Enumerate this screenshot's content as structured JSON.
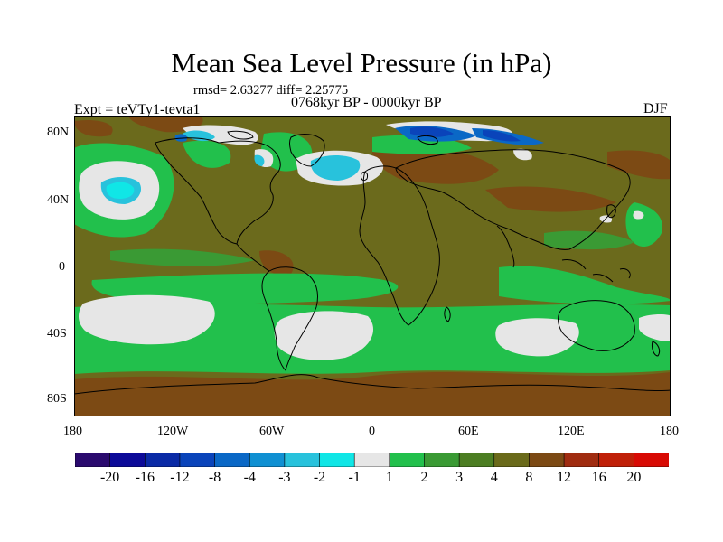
{
  "title": "Mean Sea Level Pressure (in hPa)",
  "stats": "rmsd= 2.63277 diff= 2.25775",
  "period": "0768kyr BP - 0000kyr BP",
  "experiment": "Expt = teVTy1-tevta1",
  "season": "DJF",
  "axes": {
    "y_ticks": [
      "80N",
      "40N",
      "0",
      "40S",
      "80S"
    ],
    "x_ticks": [
      "180",
      "120W",
      "60W",
      "0",
      "60E",
      "120E",
      "180"
    ]
  },
  "colorbar": {
    "labels": [
      "-20",
      "-16",
      "-12",
      "-8",
      "-4",
      "-3",
      "-2",
      "-1",
      "1",
      "2",
      "3",
      "4",
      "8",
      "12",
      "16",
      "20"
    ],
    "colors": [
      "#2a0a6e",
      "#0c0a98",
      "#0a2aa6",
      "#0a44ba",
      "#0a68c6",
      "#1090d2",
      "#28c2dc",
      "#10e6e6",
      "#e6e6e6",
      "#22c04c",
      "#3a9a34",
      "#4c7e22",
      "#6a6a1a",
      "#7c4a14",
      "#a02c10",
      "#c02008",
      "#d80a04"
    ]
  },
  "colors": {
    "land_outline": "#000000",
    "background_field": "#7a6a1e"
  }
}
